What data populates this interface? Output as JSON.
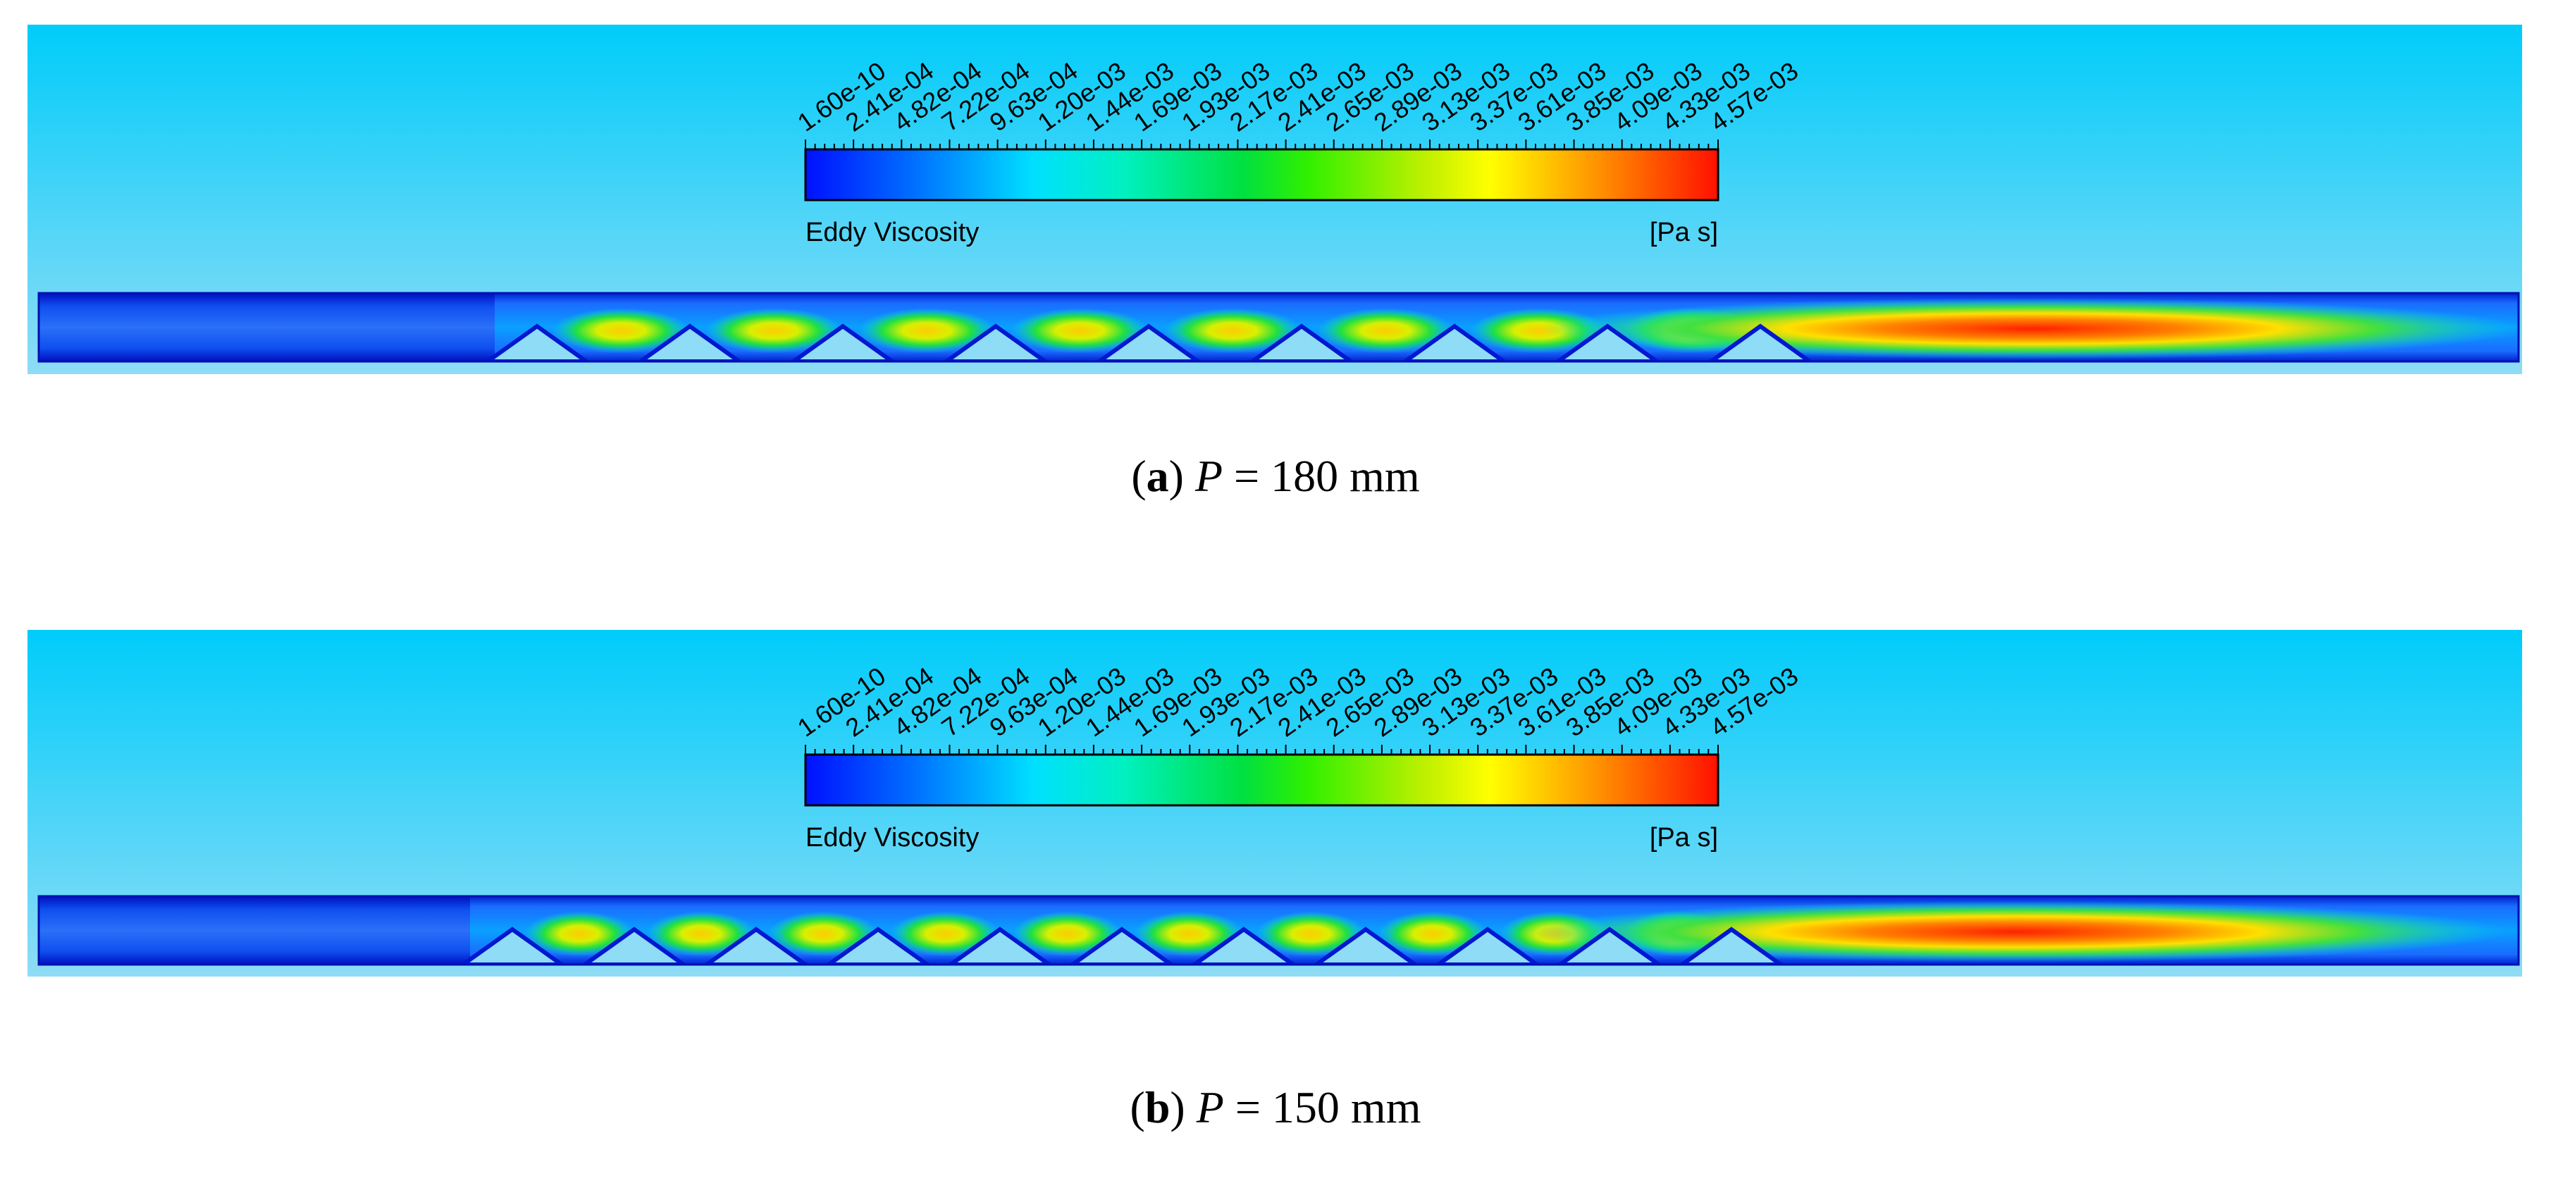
{
  "panels": [
    {
      "colorbar": {
        "ticks": [
          "1.60e-10",
          "2.41e-04",
          "4.82e-04",
          "7.22e-04",
          "9.63e-04",
          "1.20e-03",
          "1.44e-03",
          "1.69e-03",
          "1.93e-03",
          "2.17e-03",
          "2.41e-03",
          "2.65e-03",
          "2.89e-03",
          "3.13e-03",
          "3.37e-03",
          "3.61e-03",
          "3.85e-03",
          "4.09e-03",
          "4.33e-03",
          "4.57e-03"
        ],
        "title": "Eddy Viscosity",
        "unit": "[Pa s]"
      },
      "caption": [
        {
          "text": "(",
          "style": "normal"
        },
        {
          "text": "a",
          "style": "bold"
        },
        {
          "text": ") ",
          "style": "normal"
        },
        {
          "text": "P",
          "style": "italic"
        },
        {
          "text": " = 180 mm",
          "style": "normal"
        }
      ]
    },
    {
      "colorbar": {
        "ticks": [
          "1.60e-10",
          "2.41e-04",
          "4.82e-04",
          "7.22e-04",
          "9.63e-04",
          "1.20e-03",
          "1.44e-03",
          "1.69e-03",
          "1.93e-03",
          "2.17e-03",
          "2.41e-03",
          "2.65e-03",
          "2.89e-03",
          "3.13e-03",
          "3.37e-03",
          "3.61e-03",
          "3.85e-03",
          "4.09e-03",
          "4.33e-03",
          "4.57e-03"
        ],
        "title": "Eddy Viscosity",
        "unit": "[Pa s]"
      },
      "caption": [
        {
          "text": "(",
          "style": "normal"
        },
        {
          "text": "b",
          "style": "bold"
        },
        {
          "text": ") ",
          "style": "normal"
        },
        {
          "text": "P",
          "style": "italic"
        },
        {
          "text": " = 150 mm",
          "style": "normal"
        }
      ]
    }
  ]
}
